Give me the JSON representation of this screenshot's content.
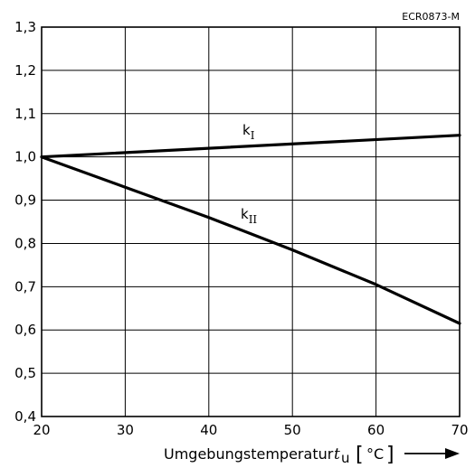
{
  "chart_data": {
    "type": "line",
    "reference": "ECR0873-M",
    "x_ticks": [
      "20",
      "30",
      "40",
      "50",
      "60",
      "70"
    ],
    "y_ticks": [
      "0,4",
      "0,5",
      "0,6",
      "0,7",
      "0,8",
      "0,9",
      "1,0",
      "1,1",
      "1,2",
      "1,3"
    ],
    "xlim": [
      20,
      70
    ],
    "ylim": [
      0.4,
      1.3
    ],
    "grid": true,
    "xlabel": {
      "text": "Umgebungstemperatur",
      "symbol": "t",
      "symbol_sub": "u",
      "bracket_open": "[",
      "unit": "°C",
      "bracket_close": "]"
    },
    "series": [
      {
        "name": "k",
        "name_sub": "I",
        "x": [
          20,
          70
        ],
        "y": [
          1.0,
          1.05
        ]
      },
      {
        "name": "k",
        "name_sub": "II",
        "x": [
          20,
          30,
          40,
          50,
          60,
          70
        ],
        "y": [
          1.0,
          0.93,
          0.86,
          0.785,
          0.705,
          0.615
        ]
      }
    ],
    "line_color": "#000000",
    "grid_color": "#000000"
  }
}
